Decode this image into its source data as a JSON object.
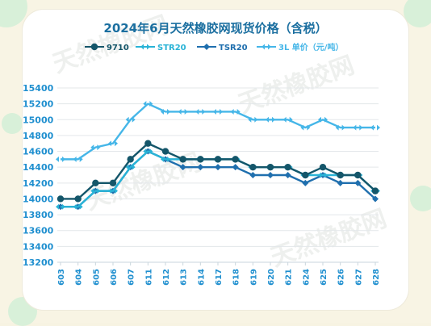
{
  "chart_data": {
    "type": "line",
    "title": "2024年6月天然橡胶网现货价格（含税）",
    "categories": [
      "603",
      "604",
      "605",
      "606",
      "607",
      "611",
      "612",
      "613",
      "614",
      "617",
      "618",
      "619",
      "620",
      "621",
      "624",
      "625",
      "626",
      "627",
      "628"
    ],
    "series": [
      {
        "name": "9710",
        "color": "#14566a",
        "marker": "circle",
        "values": [
          14000,
          14000,
          14200,
          14200,
          14500,
          14700,
          14600,
          14500,
          14500,
          14500,
          14500,
          14400,
          14400,
          14400,
          14300,
          14400,
          14300,
          14300,
          14100
        ]
      },
      {
        "name": "STR20",
        "color": "#29b3d6",
        "marker": "double-arrow",
        "values": [
          13900,
          13900,
          14100,
          14100,
          14400,
          14600,
          14500,
          14500,
          14500,
          14500,
          14500,
          14400,
          14400,
          14400,
          14300,
          14300,
          14300,
          14300,
          14100
        ]
      },
      {
        "name": "TSR20",
        "color": "#1f6fae",
        "marker": "diamond",
        "values": [
          13900,
          13900,
          14100,
          14100,
          14400,
          14600,
          14500,
          14400,
          14400,
          14400,
          14400,
          14300,
          14300,
          14300,
          14200,
          14300,
          14200,
          14200,
          14000
        ]
      },
      {
        "name": "3L 单价（元/吨）",
        "color": "#45b6e8",
        "marker": "double-arrow",
        "values": [
          14500,
          14500,
          14650,
          14700,
          15000,
          15200,
          15100,
          15100,
          15100,
          15100,
          15100,
          15000,
          15000,
          15000,
          14900,
          15000,
          14900,
          14900,
          14900
        ]
      }
    ],
    "ylim": [
      13200,
      15400
    ],
    "yticks": [
      13200,
      13400,
      13600,
      13800,
      14000,
      14200,
      14400,
      14600,
      14800,
      15000,
      15200,
      15400
    ],
    "xlabel": "",
    "ylabel": "",
    "grid": true,
    "legend": "top"
  },
  "decor": {
    "watermark_icon": "tianran-rubber-logo-watermark",
    "bubble_color": "#d8f0d9"
  }
}
